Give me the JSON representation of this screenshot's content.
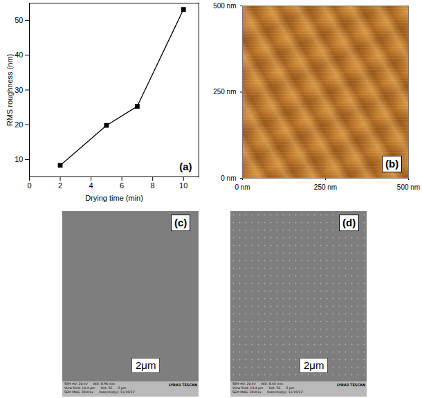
{
  "chart_data": {
    "type": "line",
    "x_label": "Drying time (min)",
    "y_label": "RMS roughness (nm)",
    "annotations": [
      "(a)"
    ],
    "x": [
      2,
      5,
      7,
      10
    ],
    "values": [
      8.3,
      19.8,
      25.3,
      53.2
    ],
    "color": "#000000",
    "marker": "square",
    "xlim": [
      0,
      11
    ],
    "xticks": [
      0,
      2,
      4,
      6,
      8,
      10
    ],
    "ylim": [
      5,
      55
    ],
    "yticks": [
      10,
      20,
      30,
      40,
      50
    ]
  },
  "afm_image": {
    "label": "(b)",
    "xlim": [
      0,
      500
    ],
    "ylim": [
      0,
      500
    ],
    "xticks": [
      {
        "value": 0,
        "label": "0 nm"
      },
      {
        "value": 250,
        "label": "250 nm"
      },
      {
        "value": 500,
        "label": "500 nm"
      }
    ],
    "yticks": [
      {
        "value": 0,
        "label": "0 nm"
      },
      {
        "value": 250,
        "label": "250 nm"
      },
      {
        "value": 500,
        "label": "500 nm"
      }
    ]
  },
  "sem_images": [
    {
      "label": "(c)",
      "scale_bar": "2μm",
      "logo": "LYRA3 TESCAN",
      "info": [
        [
          "SEM HV: 20 kV",
          "WD: 8.96 mm"
        ],
        [
          "View field: 14.4 μm",
          "Det: SE",
          "2 μm"
        ],
        [
          "SEM MAG: 20.0 kx",
          "Date(m/d/y): 11/19/12"
        ]
      ]
    },
    {
      "label": "(d)",
      "scale_bar": "2μm",
      "logo": "LYRA3 TESCAN",
      "info": [
        [
          "SEM HV: 20 kV",
          "WD: 8.45 mm"
        ],
        [
          "View field: 14.4 μm",
          "Det: SE",
          "2 μm"
        ],
        [
          "SEM MAG: 20.0 kx",
          "Date(m/d/y): 11/19/12"
        ]
      ]
    }
  ]
}
